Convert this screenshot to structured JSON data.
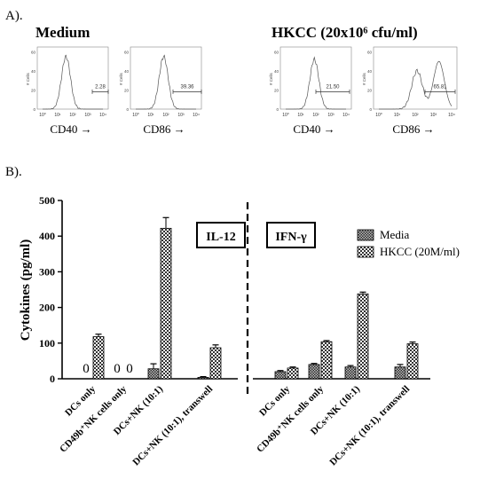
{
  "panel_a": {
    "label": "A).",
    "group_titles": [
      "Medium",
      "HKCC (20x10⁶ cfu/ml)"
    ],
    "y_axis_label": "# Cells",
    "x_tick_labels": [
      "10⁰",
      "10¹",
      "10²",
      "10³",
      "10⁴"
    ],
    "histograms": [
      {
        "group": "Medium",
        "marker": "CD40 →",
        "gate_value": "2.28",
        "peaks": [
          {
            "x": 1.55,
            "y": 55
          }
        ]
      },
      {
        "group": "Medium",
        "marker": "CD86 →",
        "gate_value": "39.36",
        "peaks": [
          {
            "x": 1.85,
            "y": 55
          }
        ]
      },
      {
        "group": "HKCC (20x10⁶ cfu/ml)",
        "marker": "CD40 →",
        "gate_value": "21.50",
        "peaks": [
          {
            "x": 1.9,
            "y": 52
          }
        ]
      },
      {
        "group": "HKCC (20x10⁶ cfu/ml)",
        "marker": "CD86 →",
        "gate_value": "65.81",
        "peaks": [
          {
            "x": 2.1,
            "y": 40
          },
          {
            "x": 3.3,
            "y": 50
          }
        ]
      }
    ],
    "y_ticks": [
      0,
      20,
      40,
      60
    ]
  },
  "panel_b_label": "B).",
  "chart_data": {
    "type": "bar",
    "ylabel": "Cytokines (pg/ml)",
    "ylim": [
      0,
      500
    ],
    "yticks": [
      0,
      100,
      200,
      300,
      400,
      500
    ],
    "panels": [
      {
        "name": "IL-12",
        "categories": [
          "DCs only",
          "CD49b⁺NK cells only",
          "DCs+NK (10:1)",
          "DCs+NK (10:1), transwell"
        ]
      },
      {
        "name": "IFN-γ",
        "categories": [
          "DCs only",
          "CD49b⁺NK cells only",
          "DCs+NK (10:1)",
          "DCs+NK (10:1), transwell"
        ]
      }
    ],
    "series": [
      {
        "name": "Media",
        "il12": [
          0,
          0,
          28,
          4
        ],
        "il12_err": [
          0,
          0,
          14,
          2
        ],
        "ifng": [
          20,
          40,
          33,
          33
        ],
        "ifng_err": [
          3,
          3,
          4,
          7
        ]
      },
      {
        "name": "HKCC (20M/ml)",
        "il12": [
          118,
          0,
          422,
          87
        ],
        "il12_err": [
          7,
          0,
          30,
          8
        ],
        "ifng": [
          30,
          104,
          238,
          98
        ],
        "ifng_err": [
          3,
          3,
          5,
          5
        ]
      }
    ],
    "zero_labels": [
      {
        "panel": 0,
        "category": 0,
        "series": 0,
        "text": "0"
      },
      {
        "panel": 0,
        "category": 1,
        "series": 0,
        "text": "0"
      },
      {
        "panel": 0,
        "category": 1,
        "series": 1,
        "text": "0"
      }
    ],
    "legend_position": "top-right",
    "colors": {
      "media": "#222222",
      "hkcc": "#ffffff"
    }
  }
}
